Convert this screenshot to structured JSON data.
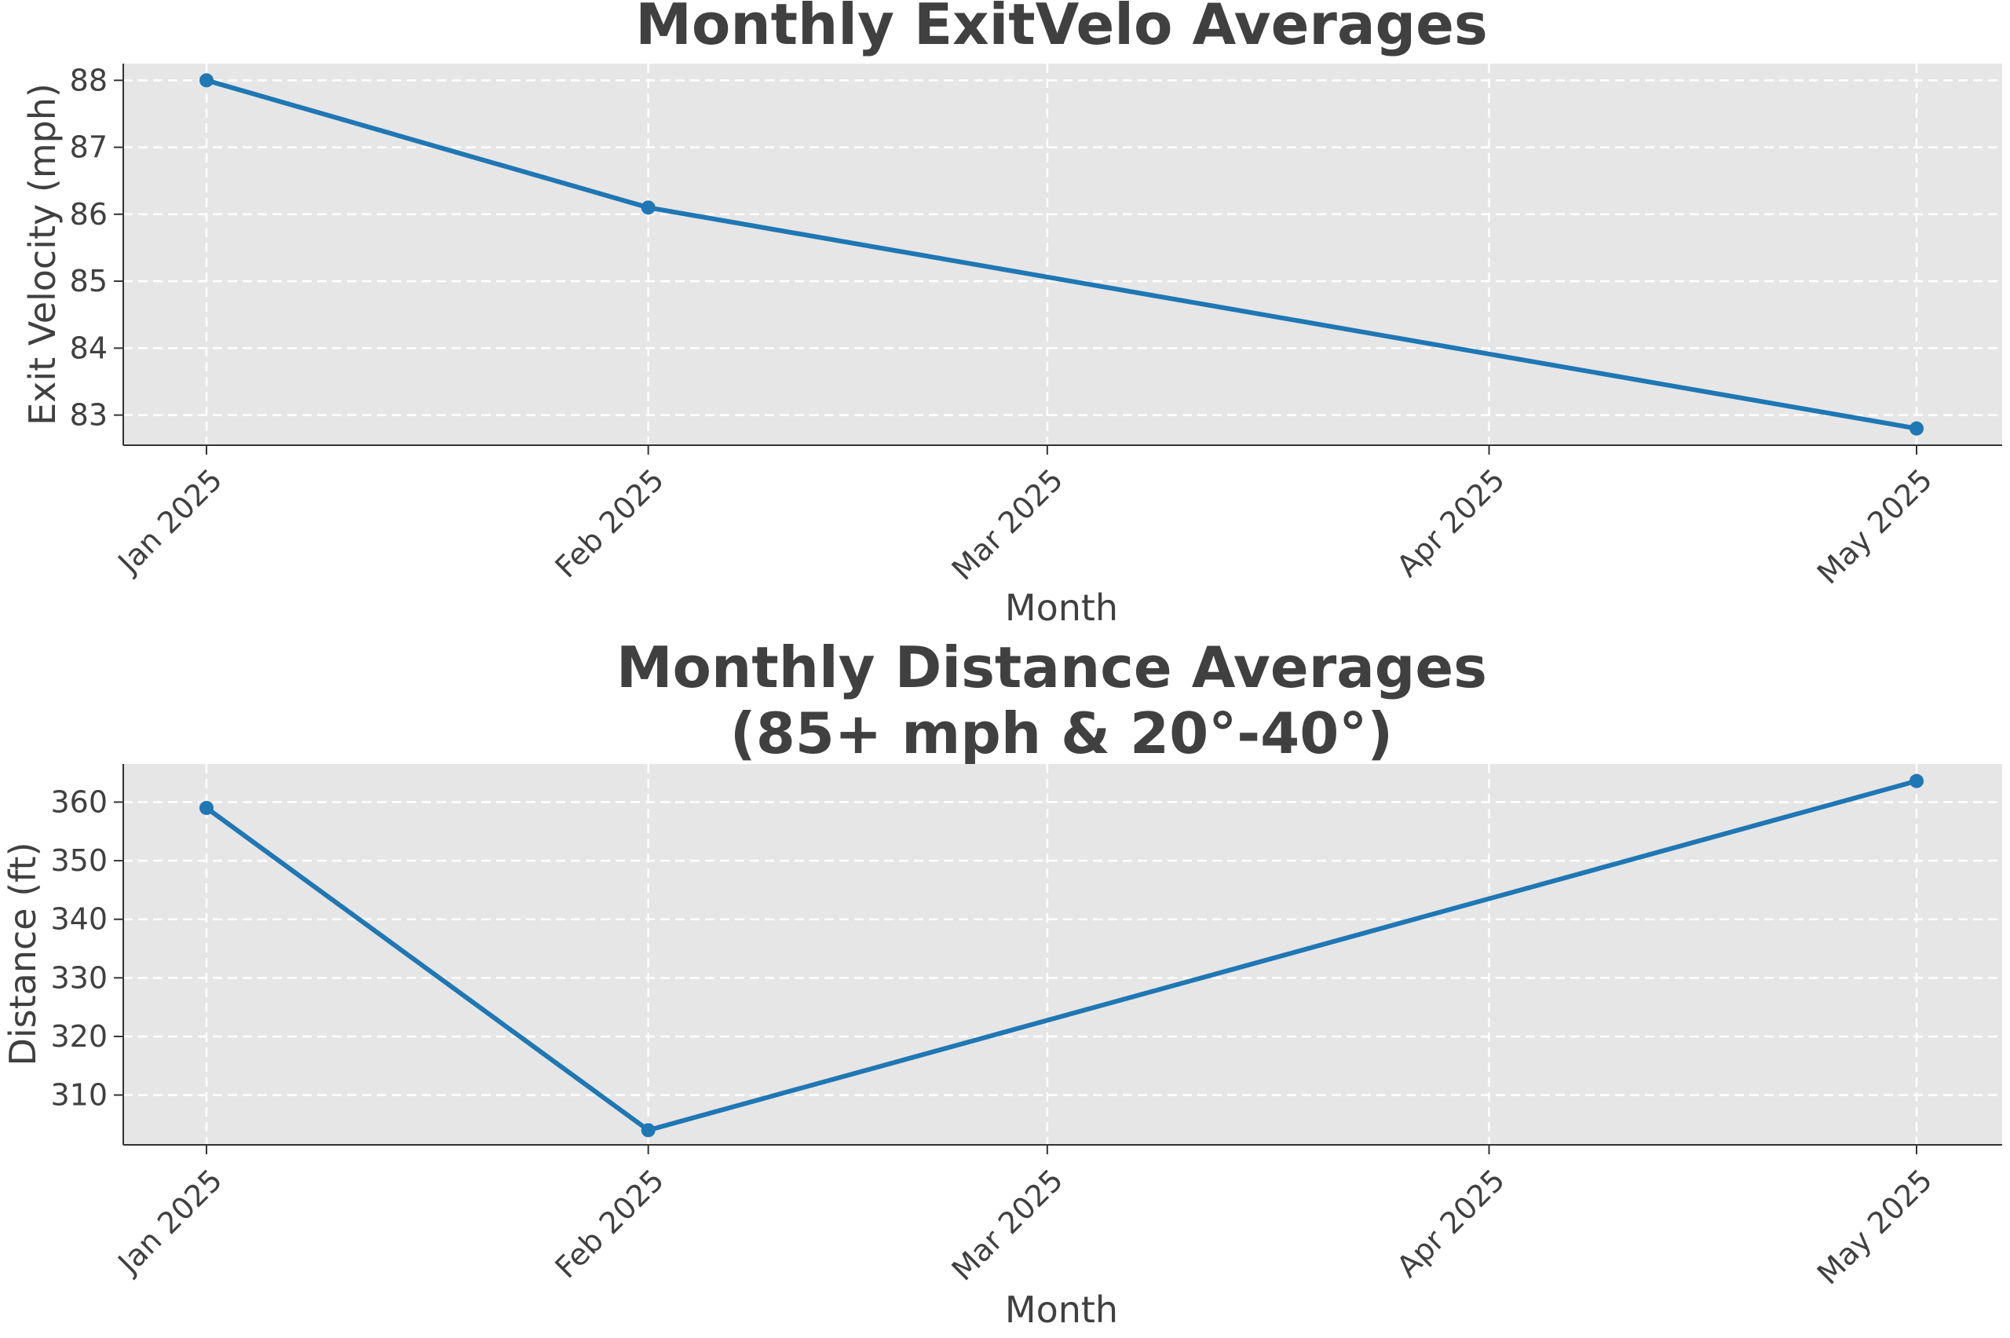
{
  "colors": {
    "line": "#1f77b4",
    "plot_background": "#e6e6e6",
    "grid": "#ffffff",
    "text": "#404040",
    "axis": "#333333"
  },
  "chart_data": [
    {
      "type": "line",
      "title": "Monthly ExitVelo Averages",
      "xlabel": "Month",
      "ylabel": "Exit Velocity (mph)",
      "x_ticks": [
        "Jan 2025",
        "Feb 2025",
        "Mar 2025",
        "Apr 2025",
        "May 2025"
      ],
      "x": [
        "2025-01-01",
        "2025-02-01",
        "2025-05-01"
      ],
      "series": [
        {
          "values": [
            88.0,
            86.1,
            82.8
          ]
        }
      ],
      "ylim": [
        82.55,
        88.25
      ],
      "y_ticks": [
        "83",
        "84",
        "85",
        "86",
        "87",
        "88"
      ],
      "grid": true,
      "grid_style": "dashed"
    },
    {
      "type": "line",
      "title": "Monthly Distance Averages\n(85+ mph & 20°-40°)",
      "title_lines": [
        "Monthly Distance Averages",
        "(85+ mph & 20°-40°)"
      ],
      "xlabel": "Month",
      "ylabel": "Distance (ft)",
      "x_ticks": [
        "Jan 2025",
        "Feb 2025",
        "Mar 2025",
        "Apr 2025",
        "May 2025"
      ],
      "x": [
        "2025-01-01",
        "2025-02-01",
        "2025-05-01"
      ],
      "series": [
        {
          "values": [
            359.0,
            304.0,
            363.6
          ]
        }
      ],
      "ylim": [
        301.5,
        366.5
      ],
      "y_ticks": [
        "310",
        "320",
        "330",
        "340",
        "350",
        "360"
      ],
      "grid": true,
      "grid_style": "dashed"
    }
  ]
}
